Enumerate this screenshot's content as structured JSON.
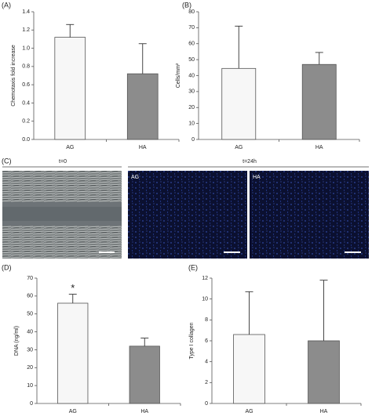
{
  "chart_data": [
    {
      "type": "bar",
      "panel_label": "(A)",
      "y_label": "Chemotaxis fold increase",
      "categories": [
        "AG",
        "HA"
      ],
      "values": [
        1.12,
        0.72
      ],
      "errors": [
        0.14,
        0.33
      ],
      "colors": [
        "#f7f7f7",
        "#8c8c8c"
      ],
      "ylim": [
        0,
        1.4
      ],
      "yticks": [
        {
          "value": 0,
          "label": "0.0"
        },
        {
          "value": 0.2,
          "label": "0.2"
        },
        {
          "value": 0.4,
          "label": "0.4"
        },
        {
          "value": 0.6,
          "label": "0.6"
        },
        {
          "value": 0.8,
          "label": "0.8"
        },
        {
          "value": 1,
          "label": "1.0"
        },
        {
          "value": 1.2,
          "label": "1.2"
        },
        {
          "value": 1.4,
          "label": "1.4"
        }
      ]
    },
    {
      "type": "bar",
      "panel_label": "(B)",
      "y_label": "Cells/mm²",
      "categories": [
        "AG",
        "HA"
      ],
      "values": [
        44.5,
        47
      ],
      "errors": [
        26.5,
        7.5
      ],
      "colors": [
        "#f7f7f7",
        "#8c8c8c"
      ],
      "ylim": [
        0,
        80
      ],
      "yticks": [
        0,
        10,
        20,
        30,
        40,
        50,
        60,
        70,
        80
      ]
    },
    {
      "type": "bar",
      "panel_label": "(D)",
      "y_label": "DNA (ng/ml)",
      "categories": [
        "AG",
        "HA"
      ],
      "values": [
        56,
        32
      ],
      "errors": [
        5,
        4.5
      ],
      "colors": [
        "#f7f7f7",
        "#8c8c8c"
      ],
      "annotations": [
        "*",
        null
      ],
      "ylim": [
        0,
        70
      ],
      "yticks": [
        0,
        10,
        20,
        30,
        40,
        50,
        60,
        70
      ]
    },
    {
      "type": "bar",
      "panel_label": "(E)",
      "y_label": "Type I collagen",
      "categories": [
        "AG",
        "HA"
      ],
      "values": [
        6.6,
        6.0
      ],
      "errors": [
        4.1,
        5.8
      ],
      "colors": [
        "#f7f7f7",
        "#8c8c8c"
      ],
      "ylim": [
        0,
        12
      ],
      "yticks": [
        0,
        2,
        4,
        6,
        8,
        10,
        12
      ]
    }
  ],
  "panel_c": {
    "label": "(C)",
    "left_title": "t=0",
    "right_title": "t=24h",
    "image_labels": [
      "AG",
      "HA"
    ]
  }
}
